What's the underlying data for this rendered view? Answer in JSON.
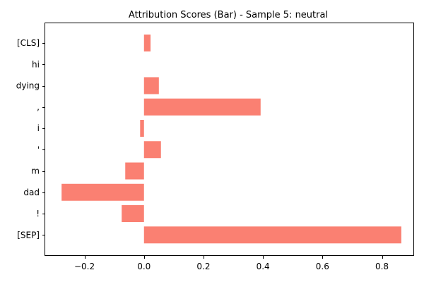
{
  "chart_data": {
    "type": "bar",
    "orientation": "horizontal",
    "title": "Attribution Scores (Bar) - Sample 5: neutral",
    "xlabel": "",
    "ylabel": "",
    "categories": [
      "[CLS]",
      "hi",
      "dying",
      ",",
      "i",
      "'",
      "m",
      "dad",
      "!",
      "[SEP]"
    ],
    "values": [
      0.022,
      0.0,
      0.05,
      0.392,
      -0.013,
      0.057,
      -0.063,
      -0.277,
      -0.075,
      0.865
    ],
    "xlim": [
      -0.332,
      0.908
    ],
    "xticks": [
      -0.2,
      0.0,
      0.2,
      0.4,
      0.6,
      0.8
    ],
    "xtick_labels": [
      "−0.2",
      "0.0",
      "0.2",
      "0.4",
      "0.6",
      "0.8"
    ],
    "bar_color": "#fa8072",
    "grid": false,
    "legend": "none"
  }
}
